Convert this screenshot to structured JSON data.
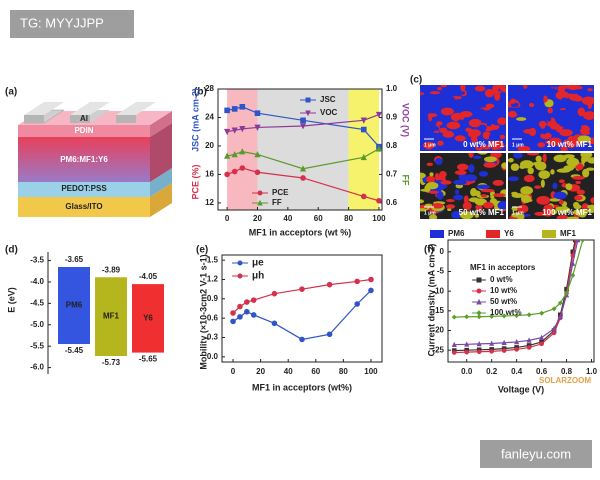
{
  "watermarks": [
    "TG: MYYJJPP",
    "fanleyu.com",
    "SOLARZOOM"
  ],
  "panel_labels": [
    "(a)",
    "(b)",
    "(c)",
    "(d)",
    "(e)",
    "(f)"
  ],
  "device_stack": {
    "layers": [
      "Al",
      "PDIN",
      "PM6:MF1:Y6",
      "PEDOT:PSS",
      "Glass/ITO"
    ]
  },
  "morphology": {
    "images": [
      "0 wt% MF1",
      "10 wt% MF1",
      "50 wt% MF1",
      "100 wt% MF1"
    ],
    "scale_bar": "1 μm",
    "legend": [
      {
        "name": "PM6",
        "color": "#1f2fd6"
      },
      {
        "name": "Y6",
        "color": "#e3262a"
      },
      {
        "name": "MF1",
        "color": "#b5b51e"
      }
    ]
  },
  "chart_data": [
    {
      "type": "line",
      "x_label": "MF1 in acceptors (wt %)",
      "y_label_upper": "JSC (mA cm-2)",
      "y_label_lower": "PCE (%)",
      "y2_label_upper": "VOC (V)",
      "y2_label_lower": "FF",
      "x": [
        0,
        5,
        10,
        20,
        50,
        90,
        100
      ],
      "xlim": [
        -6,
        102
      ],
      "xticks": [
        0,
        20,
        40,
        60,
        80,
        100
      ],
      "ylim": [
        11,
        28
      ],
      "yticks": [
        12,
        16,
        20,
        24,
        28
      ],
      "y2lim": [
        0.575,
        1.0
      ],
      "y2ticks": [
        0.6,
        0.7,
        0.8,
        0.9,
        {
          "value": 1.0,
          "label": "1.0"
        }
      ],
      "regions": [
        {
          "from": 0,
          "to": 20,
          "color": "#f7b8c0"
        },
        {
          "from": 20,
          "to": 80,
          "color": "#dcdcdc"
        },
        {
          "from": 80,
          "to": 100,
          "color": "#f6f26b"
        }
      ],
      "series": [
        {
          "name": "JSC",
          "color": "#2f55c8",
          "marker": "square",
          "values": [
            25.0,
            25.2,
            25.5,
            24.6,
            23.6,
            22.3,
            19.9
          ]
        },
        {
          "name": "VOC",
          "color": "#8b3a9a",
          "marker": "triangle-down",
          "axis": "y2",
          "values": [
            0.85,
            0.855,
            0.86,
            0.865,
            0.87,
            0.89,
            0.91
          ]
        },
        {
          "name": "PCE",
          "color": "#d6304a",
          "marker": "circle",
          "values": [
            16.0,
            16.4,
            16.9,
            16.3,
            15.5,
            12.9,
            12.3
          ]
        },
        {
          "name": "FF",
          "color": "#5a9a2a",
          "marker": "triangle",
          "axis": "y2",
          "values": [
            0.765,
            0.77,
            0.78,
            0.77,
            0.72,
            0.76,
            0.79
          ]
        }
      ]
    },
    {
      "type": "energy-level",
      "y_label": "E (eV)",
      "ylim": [
        -6.15,
        -3.3
      ],
      "yticks": [
        -3.5,
        {
          "value": -4.0,
          "label": "-4.0"
        },
        -4.5,
        {
          "value": -5.0,
          "label": "-5.0"
        },
        -5.5,
        {
          "value": -6.0,
          "label": "-6.0"
        }
      ],
      "materials": [
        {
          "name": "PM6",
          "color": "#3355e0",
          "lumo": -3.65,
          "homo": -5.45
        },
        {
          "name": "MF1",
          "color": "#b5b51e",
          "lumo": -3.89,
          "homo": -5.73
        },
        {
          "name": "Y6",
          "color": "#f03030",
          "lumo": -4.05,
          "homo": -5.65
        }
      ]
    },
    {
      "type": "line",
      "x_label": "MF1 in acceptors (wt%)",
      "y_label": "Mobility (×10-3cm2 V-1 s-1)",
      "x": [
        0,
        5,
        10,
        15,
        30,
        50,
        70,
        90,
        100
      ],
      "xlim": [
        -8,
        108
      ],
      "xticks": [
        0,
        20,
        40,
        60,
        80,
        100
      ],
      "ylim": [
        -0.08,
        1.58
      ],
      "yticks": [
        {
          "value": 0,
          "label": "0.0"
        },
        0.3,
        0.6,
        0.9,
        1.2,
        1.5
      ],
      "series": [
        {
          "name": "μe",
          "color": "#2f55c8",
          "marker": "circle",
          "values": [
            0.55,
            0.62,
            0.7,
            0.65,
            0.52,
            0.27,
            0.35,
            0.82,
            1.03
          ]
        },
        {
          "name": "μh",
          "color": "#d6304a",
          "marker": "circle",
          "values": [
            0.68,
            0.78,
            0.85,
            0.88,
            0.98,
            1.05,
            1.12,
            1.17,
            1.2
          ]
        }
      ]
    },
    {
      "type": "line",
      "x_label": "Voltage (V)",
      "y_label": "Current density (mA cm-2)",
      "legend_title": "MF1 in acceptors",
      "xlim": [
        -0.15,
        1.02
      ],
      "xticks": [
        {
          "value": 0,
          "label": "0.0"
        },
        0.2,
        0.4,
        0.6,
        0.8,
        {
          "value": 1.0,
          "label": "1.0"
        }
      ],
      "ylim": [
        -28,
        3
      ],
      "yticks": [
        0,
        -5,
        -10,
        -15,
        -20,
        -25
      ],
      "series": [
        {
          "name": "0 wt%",
          "color": "#333333",
          "marker": "square",
          "x": [
            -0.1,
            0,
            0.1,
            0.2,
            0.3,
            0.4,
            0.5,
            0.6,
            0.7,
            0.75,
            0.8,
            0.85,
            0.87
          ],
          "values": [
            -25.1,
            -25.0,
            -24.9,
            -24.8,
            -24.6,
            -24.3,
            -23.8,
            -22.9,
            -20.0,
            -16.0,
            -9.5,
            0,
            3
          ]
        },
        {
          "name": "10 wt%",
          "color": "#d6304a",
          "marker": "circle",
          "x": [
            -0.1,
            0,
            0.1,
            0.2,
            0.3,
            0.4,
            0.5,
            0.6,
            0.7,
            0.75,
            0.8,
            0.85,
            0.88
          ],
          "values": [
            -25.6,
            -25.5,
            -25.4,
            -25.3,
            -25.1,
            -24.8,
            -24.3,
            -23.4,
            -20.6,
            -16.8,
            -10.5,
            -1,
            3
          ]
        },
        {
          "name": "50 wt%",
          "color": "#7a4aa8",
          "marker": "triangle",
          "x": [
            -0.1,
            0,
            0.1,
            0.2,
            0.3,
            0.4,
            0.5,
            0.6,
            0.7,
            0.75,
            0.8,
            0.85,
            0.89
          ],
          "values": [
            -23.6,
            -23.5,
            -23.4,
            -23.3,
            -23.1,
            -22.9,
            -22.5,
            -21.8,
            -19.5,
            -16.5,
            -11,
            -3,
            3
          ]
        },
        {
          "name": "100 wt%",
          "color": "#5aa02a",
          "marker": "diamond",
          "x": [
            -0.1,
            0,
            0.1,
            0.2,
            0.3,
            0.4,
            0.5,
            0.6,
            0.7,
            0.75,
            0.8,
            0.85,
            0.93
          ],
          "values": [
            -16.6,
            -16.5,
            -16.5,
            -16.4,
            -16.3,
            -16.2,
            -16.0,
            -15.6,
            -14.5,
            -13.0,
            -10.5,
            -6,
            3
          ]
        }
      ]
    }
  ]
}
